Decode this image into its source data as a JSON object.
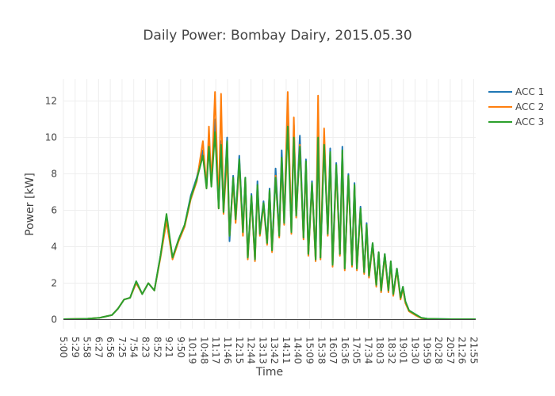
{
  "chart_data": {
    "type": "line",
    "title": "Daily Power: Bombay Dairy,  2015.05.30",
    "xlabel": "Time",
    "ylabel": "Power [kW]",
    "ylim": [
      -0.5,
      13.2
    ],
    "yticks": [
      0,
      2,
      4,
      6,
      8,
      10,
      12
    ],
    "xtick_labels": [
      "5:00",
      "5:29",
      "5:58",
      "6:27",
      "6:56",
      "7:25",
      "7:54",
      "8:23",
      "8:52",
      "9:21",
      "9:50",
      "10:19",
      "10:48",
      "11:17",
      "11:46",
      "12:15",
      "12:44",
      "13:13",
      "13:42",
      "14:11",
      "14:40",
      "15:09",
      "15:38",
      "16:07",
      "16:36",
      "17:05",
      "17:34",
      "18:03",
      "18:32",
      "19:01",
      "19:30",
      "19:59",
      "20:28",
      "20:57",
      "21:26",
      "21:55"
    ],
    "x_range_hours": [
      5.0,
      22.0
    ],
    "grid": true,
    "legend_position": "top-right",
    "colors": {
      "ACC 1": "#1f77b4",
      "ACC 2": "#ff7f0e",
      "ACC 3": "#2ca02c"
    },
    "series": [
      {
        "name": "ACC 1",
        "x": [
          5.0,
          5.5,
          6.0,
          6.5,
          7.0,
          7.25,
          7.5,
          7.75,
          8.0,
          8.25,
          8.5,
          8.75,
          9.0,
          9.25,
          9.5,
          9.75,
          10.0,
          10.25,
          10.5,
          10.75,
          10.9,
          11.0,
          11.1,
          11.25,
          11.4,
          11.5,
          11.6,
          11.75,
          11.85,
          12.0,
          12.1,
          12.25,
          12.4,
          12.5,
          12.6,
          12.75,
          12.9,
          13.0,
          13.1,
          13.25,
          13.4,
          13.5,
          13.6,
          13.75,
          13.9,
          14.0,
          14.1,
          14.25,
          14.4,
          14.5,
          14.6,
          14.75,
          14.9,
          15.0,
          15.1,
          15.25,
          15.4,
          15.5,
          15.6,
          15.75,
          15.9,
          16.0,
          16.1,
          16.25,
          16.4,
          16.5,
          16.6,
          16.75,
          16.9,
          17.0,
          17.1,
          17.25,
          17.4,
          17.5,
          17.6,
          17.75,
          17.9,
          18.0,
          18.1,
          18.25,
          18.4,
          18.5,
          18.6,
          18.75,
          18.9,
          19.0,
          19.1,
          19.25,
          19.5,
          19.75,
          20.0,
          20.5,
          21.0,
          21.5,
          22.0
        ],
        "y": [
          0.02,
          0.03,
          0.05,
          0.1,
          0.25,
          0.6,
          1.1,
          1.2,
          2.1,
          1.4,
          2.0,
          1.6,
          3.5,
          5.6,
          3.4,
          4.4,
          5.2,
          6.8,
          7.8,
          9.3,
          7.3,
          10.0,
          7.5,
          11.0,
          6.2,
          9.8,
          6.0,
          10.0,
          4.3,
          7.9,
          5.5,
          9.0,
          4.8,
          7.8,
          3.4,
          6.9,
          3.3,
          7.6,
          4.8,
          6.5,
          4.2,
          7.2,
          3.8,
          8.3,
          4.7,
          9.3,
          5.4,
          11.8,
          4.8,
          10.7,
          5.8,
          10.1,
          4.5,
          8.8,
          3.6,
          7.6,
          3.3,
          10.0,
          3.4,
          9.8,
          4.8,
          9.4,
          3.0,
          8.6,
          3.6,
          9.5,
          2.8,
          8.0,
          3.0,
          7.5,
          2.8,
          6.2,
          2.6,
          5.3,
          2.4,
          4.2,
          1.9,
          3.7,
          1.6,
          3.6,
          1.6,
          3.2,
          1.4,
          2.8,
          1.2,
          1.8,
          1.0,
          0.5,
          0.3,
          0.1,
          0.05,
          0.03,
          0.02,
          0.02,
          0.02
        ]
      },
      {
        "name": "ACC 2",
        "x": [
          5.0,
          5.5,
          6.0,
          6.5,
          7.0,
          7.25,
          7.5,
          7.75,
          8.0,
          8.25,
          8.5,
          8.75,
          9.0,
          9.25,
          9.5,
          9.75,
          10.0,
          10.25,
          10.5,
          10.75,
          10.9,
          11.0,
          11.1,
          11.25,
          11.4,
          11.5,
          11.6,
          11.75,
          11.85,
          12.0,
          12.1,
          12.25,
          12.4,
          12.5,
          12.6,
          12.75,
          12.9,
          13.0,
          13.1,
          13.25,
          13.4,
          13.5,
          13.6,
          13.75,
          13.9,
          14.0,
          14.1,
          14.25,
          14.4,
          14.5,
          14.6,
          14.75,
          14.9,
          15.0,
          15.1,
          15.25,
          15.4,
          15.5,
          15.6,
          15.75,
          15.9,
          16.0,
          16.1,
          16.25,
          16.4,
          16.5,
          16.6,
          16.75,
          16.9,
          17.0,
          17.1,
          17.25,
          17.4,
          17.5,
          17.6,
          17.75,
          17.9,
          18.0,
          18.1,
          18.25,
          18.4,
          18.5,
          18.6,
          18.75,
          18.9,
          19.0,
          19.1,
          19.25,
          19.5,
          19.75,
          20.0,
          20.5,
          21.0,
          21.5,
          22.0
        ],
        "y": [
          0.02,
          0.03,
          0.05,
          0.1,
          0.25,
          0.6,
          1.1,
          1.2,
          2.0,
          1.4,
          2.0,
          1.6,
          3.4,
          5.4,
          3.3,
          4.3,
          5.1,
          6.6,
          7.6,
          9.8,
          7.2,
          10.6,
          7.4,
          12.5,
          6.1,
          12.4,
          5.8,
          9.0,
          4.6,
          7.6,
          5.3,
          8.6,
          4.6,
          7.7,
          3.3,
          6.7,
          3.2,
          7.3,
          4.6,
          6.3,
          4.1,
          7.0,
          3.7,
          7.9,
          4.5,
          8.8,
          5.2,
          12.5,
          4.7,
          11.1,
          5.6,
          9.6,
          4.4,
          8.5,
          3.5,
          7.4,
          3.2,
          12.3,
          3.3,
          10.5,
          4.6,
          9.0,
          2.9,
          8.3,
          3.5,
          9.1,
          2.7,
          7.8,
          2.9,
          7.3,
          2.7,
          6.0,
          2.5,
          5.1,
          2.3,
          4.1,
          1.8,
          3.6,
          1.5,
          3.5,
          1.5,
          3.1,
          1.3,
          2.7,
          1.1,
          1.7,
          0.9,
          0.45,
          0.25,
          0.08,
          0.04,
          0.02,
          0.02,
          0.02,
          0.02
        ]
      },
      {
        "name": "ACC 3",
        "x": [
          5.0,
          5.5,
          6.0,
          6.5,
          7.0,
          7.25,
          7.5,
          7.75,
          8.0,
          8.25,
          8.5,
          8.75,
          9.0,
          9.25,
          9.5,
          9.75,
          10.0,
          10.25,
          10.5,
          10.75,
          10.9,
          11.0,
          11.1,
          11.25,
          11.4,
          11.5,
          11.6,
          11.75,
          11.85,
          12.0,
          12.1,
          12.25,
          12.4,
          12.5,
          12.6,
          12.75,
          12.9,
          13.0,
          13.1,
          13.25,
          13.4,
          13.5,
          13.6,
          13.75,
          13.9,
          14.0,
          14.1,
          14.25,
          14.4,
          14.5,
          14.6,
          14.75,
          14.9,
          15.0,
          15.1,
          15.25,
          15.4,
          15.5,
          15.6,
          15.75,
          15.9,
          16.0,
          16.1,
          16.25,
          16.4,
          16.5,
          16.6,
          16.75,
          16.9,
          17.0,
          17.1,
          17.25,
          17.4,
          17.5,
          17.6,
          17.75,
          17.9,
          18.0,
          18.1,
          18.25,
          18.4,
          18.5,
          18.6,
          18.75,
          18.9,
          19.0,
          19.1,
          19.25,
          19.5,
          19.75,
          20.0,
          20.5,
          21.0,
          21.5,
          22.0
        ],
        "y": [
          0.02,
          0.03,
          0.05,
          0.1,
          0.25,
          0.6,
          1.1,
          1.2,
          2.1,
          1.4,
          2.0,
          1.6,
          3.5,
          5.8,
          3.4,
          4.4,
          5.2,
          6.7,
          7.7,
          9.0,
          7.2,
          9.5,
          7.3,
          10.3,
          6.1,
          9.6,
          5.9,
          9.8,
          4.6,
          7.8,
          5.5,
          8.8,
          4.8,
          7.8,
          3.4,
          6.8,
          3.3,
          7.4,
          4.7,
          6.4,
          4.2,
          7.1,
          3.8,
          7.8,
          4.6,
          8.9,
          5.3,
          10.6,
          4.8,
          10.0,
          5.7,
          9.5,
          4.5,
          8.7,
          3.6,
          7.5,
          3.3,
          10.0,
          3.4,
          9.6,
          4.7,
          9.2,
          3.0,
          8.5,
          3.6,
          9.3,
          2.8,
          7.9,
          3.0,
          7.4,
          2.8,
          6.1,
          2.6,
          5.2,
          2.4,
          4.2,
          1.9,
          3.7,
          1.6,
          3.6,
          1.6,
          3.2,
          1.4,
          2.8,
          1.2,
          1.8,
          1.0,
          0.5,
          0.3,
          0.1,
          0.05,
          0.03,
          0.02,
          0.02,
          0.02
        ]
      }
    ]
  }
}
